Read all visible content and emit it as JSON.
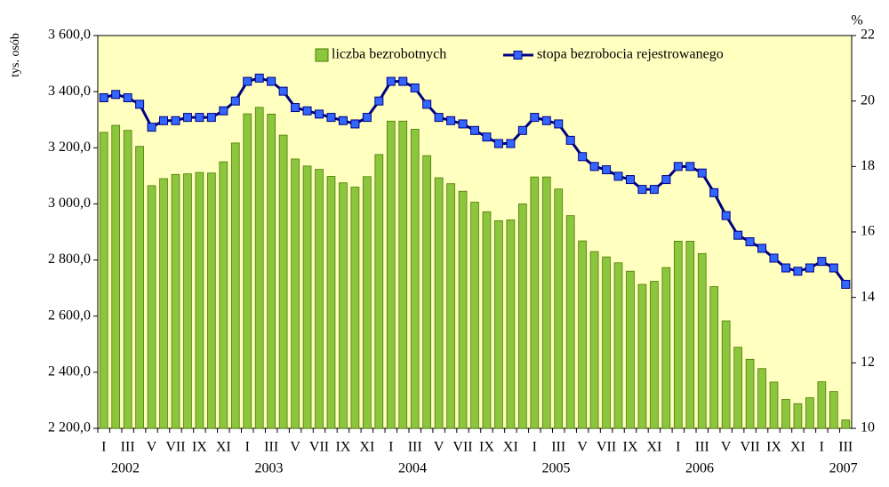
{
  "chart_data": {
    "type": "combo",
    "categories": [
      "I",
      null,
      "III",
      null,
      "V",
      null,
      "VII",
      null,
      "IX",
      null,
      "XI",
      null,
      "I",
      null,
      "III",
      null,
      "V",
      null,
      "VII",
      null,
      "IX",
      null,
      "XI",
      null,
      "I",
      null,
      "III",
      null,
      "V",
      null,
      "VII",
      null,
      "IX",
      null,
      "XI",
      null,
      "I",
      null,
      "III",
      null,
      "V",
      null,
      "VII",
      null,
      "IX",
      null,
      "XI",
      null,
      "I",
      null,
      "III",
      null,
      "V",
      null,
      "VII",
      null,
      "IX",
      null,
      "XI",
      null,
      "I",
      null,
      "III"
    ],
    "years": [
      "2002",
      "2003",
      "2004",
      "2005",
      "2006",
      "2007"
    ],
    "ylabel": "tys. osób",
    "y2label": "%",
    "ylim": [
      2200,
      3600
    ],
    "yticks": [
      {
        "value": 2200,
        "label": "2 200,0"
      },
      {
        "value": 2400,
        "label": "2 400,0"
      },
      {
        "value": 2600,
        "label": "2 600,0"
      },
      {
        "value": 2800,
        "label": "2 800,0"
      },
      {
        "value": 3000,
        "label": "3 000,0"
      },
      {
        "value": 3200,
        "label": "3 200,0"
      },
      {
        "value": 3400,
        "label": "3 400,0"
      },
      {
        "value": 3600,
        "label": "3 600,0"
      }
    ],
    "y2lim": [
      10,
      22
    ],
    "y2ticks": [
      10,
      12,
      14,
      16,
      18,
      20,
      22
    ],
    "series": [
      {
        "name": "liczba bezrobotnych",
        "type": "bar",
        "color": "#8cc63f",
        "values": [
          3255,
          3280,
          3262,
          3205,
          3065,
          3090,
          3105,
          3107,
          3112,
          3110,
          3150,
          3217,
          3321,
          3344,
          3320,
          3245,
          3160,
          3135,
          3123,
          3098,
          3075,
          3060,
          3097,
          3176,
          3295,
          3295,
          3266,
          3172,
          3093,
          3072,
          3045,
          3006,
          2972,
          2940,
          2943,
          3000,
          3096,
          3096,
          3053,
          2958,
          2868,
          2830,
          2811,
          2790,
          2760,
          2713,
          2724,
          2773,
          2867,
          2867,
          2823,
          2705,
          2583,
          2489,
          2446,
          2413,
          2365,
          2303,
          2288,
          2309,
          2366,
          2331,
          2230
        ]
      },
      {
        "name": "stopa bezrobocia rejestrowanego",
        "type": "line",
        "axis": "y2",
        "color": "#000080",
        "marker_color": "#3366ff",
        "values": [
          20.1,
          20.2,
          20.1,
          19.9,
          19.2,
          19.4,
          19.4,
          19.5,
          19.5,
          19.5,
          19.7,
          20.0,
          20.6,
          20.7,
          20.6,
          20.3,
          19.8,
          19.7,
          19.6,
          19.5,
          19.4,
          19.3,
          19.5,
          20.0,
          20.6,
          20.6,
          20.4,
          19.9,
          19.5,
          19.4,
          19.3,
          19.1,
          18.9,
          18.7,
          18.7,
          19.1,
          19.5,
          19.4,
          19.3,
          18.8,
          18.3,
          18.0,
          17.9,
          17.7,
          17.6,
          17.3,
          17.3,
          17.6,
          18.0,
          18.0,
          17.8,
          17.2,
          16.5,
          15.9,
          15.7,
          15.5,
          15.2,
          14.9,
          14.8,
          14.9,
          15.1,
          14.9,
          14.4
        ]
      }
    ]
  }
}
